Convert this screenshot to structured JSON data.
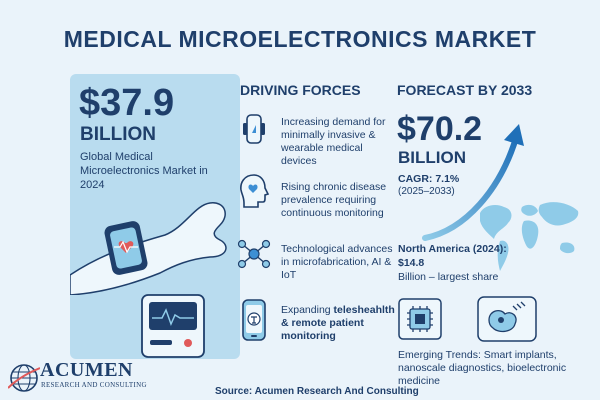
{
  "title": "MEDICAL MICROELECTRONICS MARKET",
  "market_2024": {
    "value": "$37.9",
    "unit": "BILLION",
    "description": "Global Medical Microelectronics Market in 2024"
  },
  "driving_forces": {
    "heading": "DRIVING FORCES",
    "items": [
      {
        "text": "Increasing demand for minimally invasive & wearable medical devices",
        "icon": "wearable-device-icon"
      },
      {
        "text": "Rising chronic disease prevalence requiring continuous monitoring",
        "icon": "head-heart-icon"
      },
      {
        "text": "Technological advances in microfabrication, AI & IoT",
        "icon": "network-nodes-icon"
      },
      {
        "text_plain": "Expanding ",
        "text_bold": "telesheahlth & remote patient monitoring",
        "icon": "phone-telehealth-icon"
      }
    ]
  },
  "forecast": {
    "heading": "FORECAST BY 2033",
    "value": "$70.2",
    "unit": "BILLION",
    "cagr": "CAGR: 7.1%",
    "period": "(2025–2033)",
    "north_america_bold": "North America (2024): $14.8",
    "north_america_rest": "Billion – largest share"
  },
  "trends": "Emerging Trends: Smart implants, nanoscale diagnostics, bioelectronic medicine",
  "source": "Source: Acumen Research And Consulting",
  "logo": {
    "name": "ACUMEN",
    "tagline": "RESEARCH AND CONSULTING"
  },
  "colors": {
    "navy": "#1f3f6b",
    "panel": "#b9dcef",
    "background": "#eaf3fa",
    "accent_blue": "#3d8fd4",
    "heart_red": "#e05a5a"
  }
}
